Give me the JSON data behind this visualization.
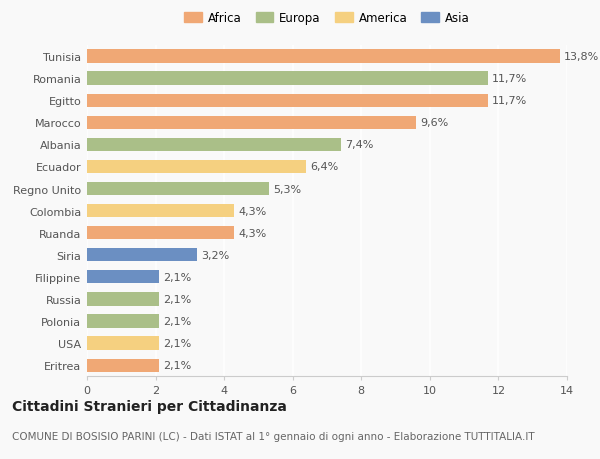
{
  "categories": [
    "Tunisia",
    "Romania",
    "Egitto",
    "Marocco",
    "Albania",
    "Ecuador",
    "Regno Unito",
    "Colombia",
    "Ruanda",
    "Siria",
    "Filippine",
    "Russia",
    "Polonia",
    "USA",
    "Eritrea"
  ],
  "values": [
    13.8,
    11.7,
    11.7,
    9.6,
    7.4,
    6.4,
    5.3,
    4.3,
    4.3,
    3.2,
    2.1,
    2.1,
    2.1,
    2.1,
    2.1
  ],
  "labels": [
    "13,8%",
    "11,7%",
    "11,7%",
    "9,6%",
    "7,4%",
    "6,4%",
    "5,3%",
    "4,3%",
    "4,3%",
    "3,2%",
    "2,1%",
    "2,1%",
    "2,1%",
    "2,1%",
    "2,1%"
  ],
  "continents": [
    "Africa",
    "Europa",
    "Africa",
    "Africa",
    "Europa",
    "America",
    "Europa",
    "America",
    "Africa",
    "Asia",
    "Asia",
    "Europa",
    "Europa",
    "America",
    "Africa"
  ],
  "colors": {
    "Africa": "#F0A875",
    "Europa": "#AABF88",
    "America": "#F5D080",
    "Asia": "#6B8FC2"
  },
  "legend_order": [
    "Africa",
    "Europa",
    "America",
    "Asia"
  ],
  "xlim": [
    0,
    14
  ],
  "xticks": [
    0,
    2,
    4,
    6,
    8,
    10,
    12,
    14
  ],
  "title": "Cittadini Stranieri per Cittadinanza",
  "subtitle": "COMUNE DI BOSISIO PARINI (LC) - Dati ISTAT al 1° gennaio di ogni anno - Elaborazione TUTTITALIA.IT",
  "bg_color": "#f9f9f9",
  "bar_height": 0.6,
  "label_fontsize": 8,
  "title_fontsize": 10,
  "subtitle_fontsize": 7.5,
  "legend_fontsize": 8.5,
  "tick_fontsize": 8
}
